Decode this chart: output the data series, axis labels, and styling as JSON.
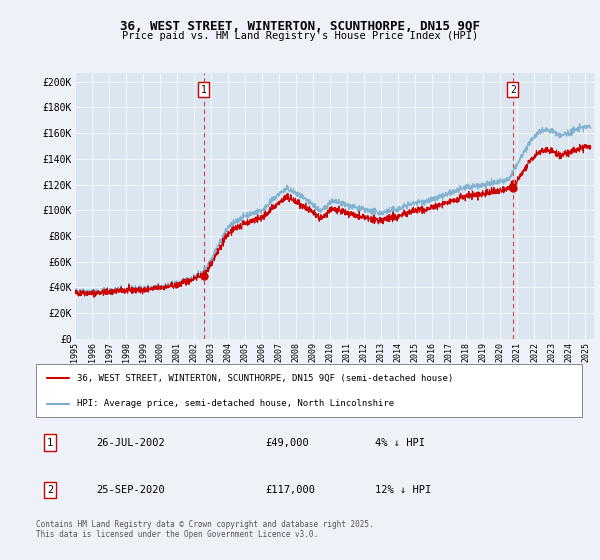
{
  "title1": "36, WEST STREET, WINTERTON, SCUNTHORPE, DN15 9QF",
  "title2": "Price paid vs. HM Land Registry's House Price Index (HPI)",
  "ylabel_ticks": [
    "£0",
    "£20K",
    "£40K",
    "£60K",
    "£80K",
    "£100K",
    "£120K",
    "£140K",
    "£160K",
    "£180K",
    "£200K"
  ],
  "ytick_values": [
    0,
    20000,
    40000,
    60000,
    80000,
    100000,
    120000,
    140000,
    160000,
    180000,
    200000
  ],
  "ylim": [
    0,
    207000
  ],
  "x_start_year": 1995,
  "x_end_year": 2025,
  "marker1": {
    "year": 2002.57,
    "price": 49000,
    "label": "1",
    "date": "26-JUL-2002",
    "pct": "4% ↓ HPI"
  },
  "marker2": {
    "year": 2020.73,
    "price": 117000,
    "label": "2",
    "date": "25-SEP-2020",
    "pct": "12% ↓ HPI"
  },
  "legend_line1": "36, WEST STREET, WINTERTON, SCUNTHORPE, DN15 9QF (semi-detached house)",
  "legend_line2": "HPI: Average price, semi-detached house, North Lincolnshire",
  "footnote": "Contains HM Land Registry data © Crown copyright and database right 2025.\nThis data is licensed under the Open Government Licence v3.0.",
  "table_row1": [
    "1",
    "26-JUL-2002",
    "£49,000",
    "4% ↓ HPI"
  ],
  "table_row2": [
    "2",
    "25-SEP-2020",
    "£117,000",
    "12% ↓ HPI"
  ],
  "line1_color": "#cc0000",
  "line2_color": "#7aadcb",
  "marker_box_color": "#cc0000",
  "dashed_line_color": "#cc0000",
  "bg_color": "#eef2f8",
  "plot_bg": "#dce6f0",
  "grid_color": "#ffffff"
}
